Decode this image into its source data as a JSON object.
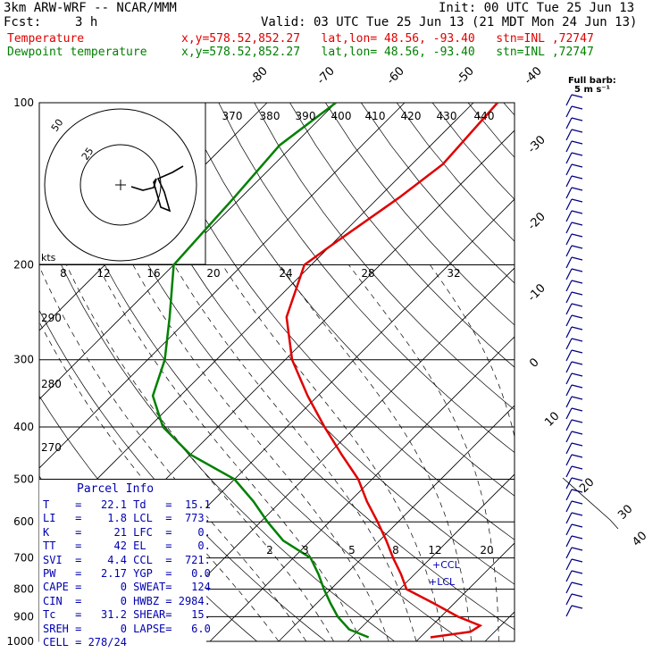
{
  "header": {
    "model": "3km ARW-WRF -- NCAR/MMM",
    "init": "Init: 00 UTC Tue 25 Jun 13",
    "fcst_label": "Fcst:",
    "fcst_value": "3 h",
    "valid": "Valid: 03 UTC Tue 25 Jun 13 (21 MDT Mon 24 Jun 13)"
  },
  "legend": {
    "temperature": {
      "label": "Temperature",
      "info": "x,y=578.52,852.27   lat,lon= 48.56, -93.40   stn=INL ,72747",
      "color": "#e00000"
    },
    "dewpoint": {
      "label": "Dewpoint temperature",
      "info": "x,y=578.52,852.27   lat,lon= 48.56, -93.40   stn=INL ,72747",
      "color": "#008000"
    }
  },
  "barb_key": {
    "title": "Full barb:",
    "value": "5 m s⁻¹"
  },
  "hodograph": {
    "units": "kts",
    "ring_labels": [
      "25",
      "50"
    ]
  },
  "parcel_info": {
    "title": "Parcel Info",
    "rows": [
      [
        "T",
        "22.1",
        "Td",
        "15.1"
      ],
      [
        "LI",
        "1.8",
        "LCL",
        "773."
      ],
      [
        "K",
        "21",
        "LFC",
        "0."
      ],
      [
        "TT",
        "42",
        "EL",
        "0."
      ],
      [
        "SVI",
        "4.4",
        "CCL",
        "721."
      ],
      [
        "PW",
        "2.17",
        "YGP",
        "0.0"
      ],
      [
        "CAPE",
        "0",
        "SWEAT",
        "124"
      ],
      [
        "CIN",
        "0",
        "HWBZ",
        "2984."
      ],
      [
        "Tc",
        "31.2",
        "SHEAR",
        "15."
      ],
      [
        "SREH",
        "0",
        "LAPSE",
        "6.0"
      ]
    ],
    "cell": "CELL = 278/24"
  },
  "chart_data": {
    "type": "line",
    "subtype": "skew-T log-P",
    "y_axis": {
      "label": "",
      "scale": "log",
      "ticks": [
        100,
        200,
        300,
        400,
        500,
        600,
        700,
        800,
        900,
        1000
      ],
      "ylim": [
        1000,
        100
      ]
    },
    "isotherm_labels": [
      "-80",
      "-70",
      "-60",
      "-50",
      "-40",
      "-30",
      "-20",
      "-10",
      "0",
      "10",
      "20",
      "30",
      "40"
    ],
    "dry_adiabat_labels_top": [
      "370",
      "380",
      "390",
      "400",
      "410",
      "420",
      "430",
      "440"
    ],
    "dry_adiabat_labels_left": [
      "290",
      "280",
      "270"
    ],
    "mixing_ratio_labels": [
      "8",
      "12",
      "16",
      "20",
      "24",
      "28",
      "32"
    ],
    "mixing_ratio_labels_low": [
      "2",
      "3",
      "5",
      "8",
      "12",
      "20"
    ],
    "lcl_labels": [
      "LCL",
      "CCL"
    ],
    "series": [
      {
        "name": "Temperature",
        "color": "#e00000",
        "points": [
          [
            983,
            11.5
          ],
          [
            960,
            16.5
          ],
          [
            935,
            17.0
          ],
          [
            900,
            12.5
          ],
          [
            850,
            7.0
          ],
          [
            800,
            1.0
          ],
          [
            750,
            -2.0
          ],
          [
            700,
            -5.5
          ],
          [
            650,
            -9.0
          ],
          [
            600,
            -13.0
          ],
          [
            550,
            -17.5
          ],
          [
            500,
            -22.0
          ],
          [
            450,
            -28.0
          ],
          [
            400,
            -34.5
          ],
          [
            350,
            -41.5
          ],
          [
            300,
            -49.0
          ],
          [
            250,
            -56.0
          ],
          [
            200,
            -61.0
          ],
          [
            185,
            -60.0
          ],
          [
            150,
            -57.0
          ],
          [
            130,
            -55.5
          ],
          [
            100,
            -56.5
          ]
        ]
      },
      {
        "name": "Dewpoint temperature",
        "color": "#008000",
        "points": [
          [
            983,
            2.5
          ],
          [
            950,
            -1.5
          ],
          [
            900,
            -5.0
          ],
          [
            850,
            -8.0
          ],
          [
            800,
            -11.0
          ],
          [
            750,
            -14.0
          ],
          [
            700,
            -17.5
          ],
          [
            650,
            -24.0
          ],
          [
            600,
            -29.0
          ],
          [
            550,
            -34.0
          ],
          [
            500,
            -40.0
          ],
          [
            450,
            -50.0
          ],
          [
            400,
            -58.0
          ],
          [
            350,
            -64.0
          ],
          [
            300,
            -67.5
          ],
          [
            250,
            -73.0
          ],
          [
            200,
            -80.0
          ],
          [
            150,
            -81.0
          ],
          [
            120,
            -82.0
          ],
          [
            100,
            -80.0
          ]
        ]
      }
    ],
    "wind_barbs": {
      "units": "m/s"
    }
  }
}
